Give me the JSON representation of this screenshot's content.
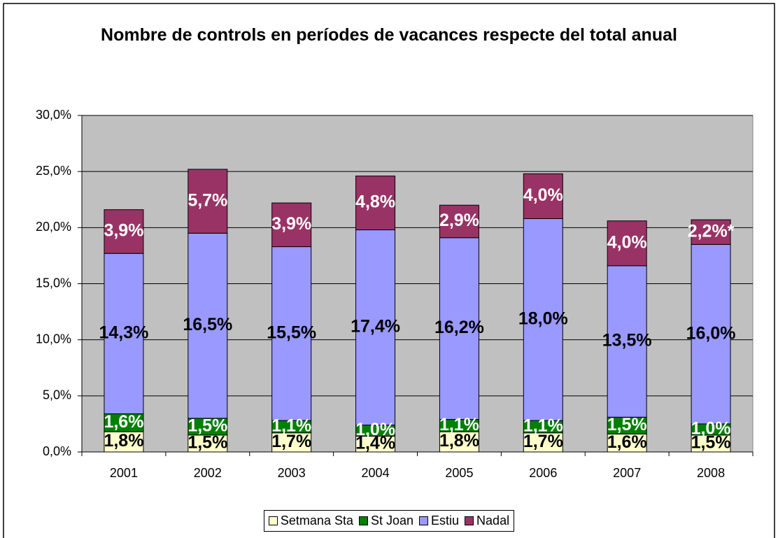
{
  "chart_data": {
    "type": "stacked_bar",
    "title": "Nombre de controls en períodes de vacances respecte del total anual",
    "categories": [
      "2001",
      "2002",
      "2003",
      "2004",
      "2005",
      "2006",
      "2007",
      "2008"
    ],
    "series": [
      {
        "name": "Setmana Sta",
        "color": "#ffffcc",
        "label_color": "#000000",
        "values": [
          1.8,
          1.5,
          1.7,
          1.4,
          1.8,
          1.7,
          1.6,
          1.5
        ],
        "value_labels": [
          "1,8%",
          "1,5%",
          "1,7%",
          "1,4%",
          "1,8%",
          "1,7%",
          "1,6%",
          "1,5%"
        ]
      },
      {
        "name": "St Joan",
        "color": "#008000",
        "label_color": "#ffffff",
        "values": [
          1.6,
          1.5,
          1.1,
          1.0,
          1.1,
          1.1,
          1.5,
          1.0
        ],
        "value_labels": [
          "1,6%",
          "1,5%",
          "1,1%",
          "1,0%",
          "1,1%",
          "1,1%",
          "1,5%",
          "1,0%"
        ]
      },
      {
        "name": "Estiu",
        "color": "#9999ff",
        "label_color": "#000000",
        "values": [
          14.3,
          16.5,
          15.5,
          17.4,
          16.2,
          18.0,
          13.5,
          16.0
        ],
        "value_labels": [
          "14,3%",
          "16,5%",
          "15,5%",
          "17,4%",
          "16,2%",
          "18,0%",
          "13,5%",
          "16,0%"
        ]
      },
      {
        "name": "Nadal",
        "color": "#993366",
        "label_color": "#ffffff",
        "values": [
          3.9,
          5.7,
          3.9,
          4.8,
          2.9,
          4.0,
          4.0,
          2.2
        ],
        "value_labels": [
          "3,9%",
          "5,7%",
          "3,9%",
          "4,8%",
          "2,9%",
          "4,0%",
          "4,0%",
          "2,2%*"
        ]
      }
    ],
    "ylim": [
      0,
      30
    ],
    "yticks": [
      {
        "value": 0,
        "label": "0,0%"
      },
      {
        "value": 5,
        "label": "5,0%"
      },
      {
        "value": 10,
        "label": "10,0%"
      },
      {
        "value": 15,
        "label": "15,0%"
      },
      {
        "value": 20,
        "label": "20,0%"
      },
      {
        "value": 25,
        "label": "25,0%"
      },
      {
        "value": 30,
        "label": "30,0%"
      }
    ],
    "grid": true,
    "legend": "bottom",
    "plot_background": "#c0c0c0"
  }
}
